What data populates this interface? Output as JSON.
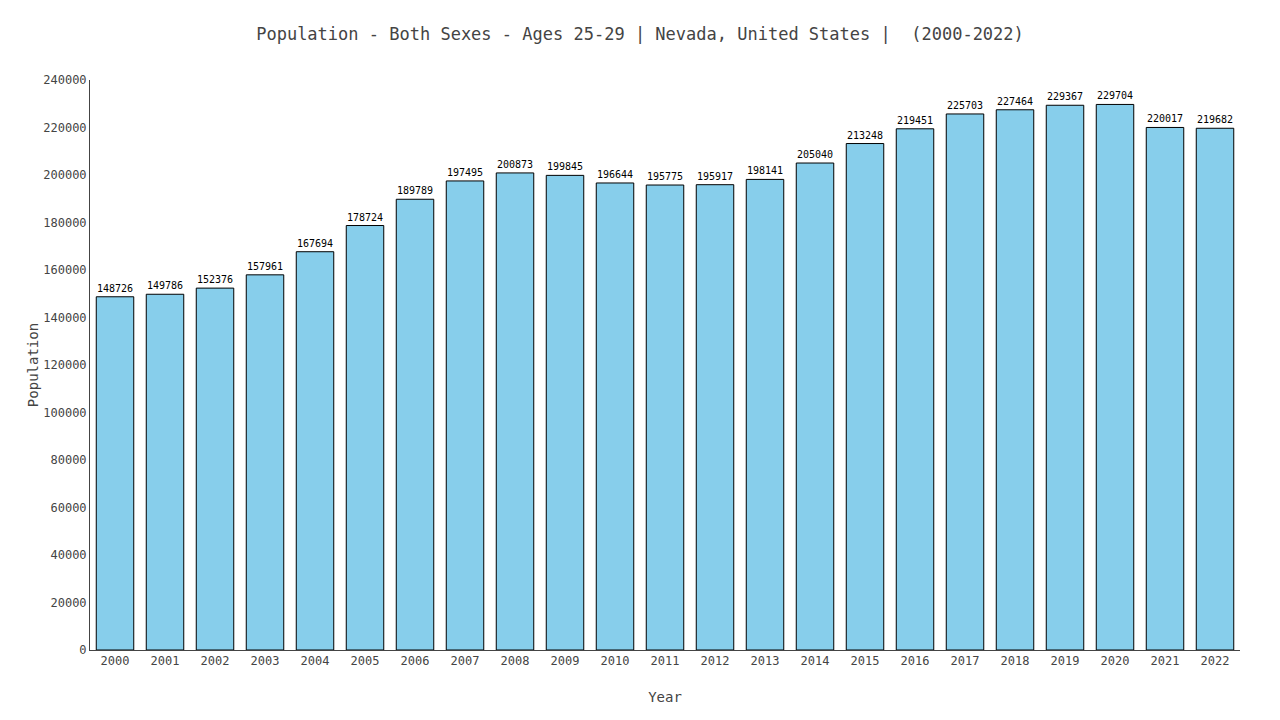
{
  "chart_data": {
    "type": "bar",
    "title": "Population - Both Sexes - Ages 25-29 | Nevada, United States |  (2000-2022)",
    "x_label": "Year",
    "y_label": "Population",
    "categories": [
      "2000",
      "2001",
      "2002",
      "2003",
      "2004",
      "2005",
      "2006",
      "2007",
      "2008",
      "2009",
      "2010",
      "2011",
      "2012",
      "2013",
      "2014",
      "2015",
      "2016",
      "2017",
      "2018",
      "2019",
      "2020",
      "2021",
      "2022"
    ],
    "values": [
      148726,
      149786,
      152376,
      157961,
      167694,
      178724,
      189789,
      197495,
      200873,
      199845,
      196644,
      195775,
      195917,
      198141,
      205040,
      213248,
      219451,
      225703,
      227464,
      229367,
      229704,
      220017,
      219682
    ],
    "color": "#87CEEB",
    "ylim": [
      0,
      240000
    ],
    "yticks": [
      0,
      20000,
      40000,
      60000,
      80000,
      100000,
      120000,
      140000,
      160000,
      180000,
      200000,
      220000,
      240000
    ],
    "grid": false,
    "data_labels": true
  }
}
